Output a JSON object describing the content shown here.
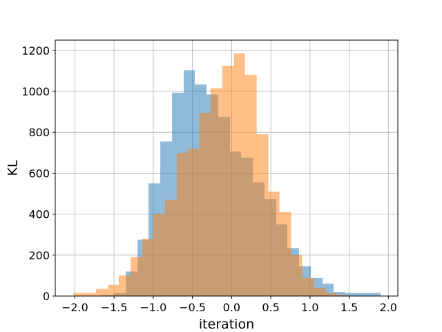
{
  "chart_data": {
    "type": "bar",
    "subtype": "overlaid-histogram",
    "title": "",
    "xlabel": "iteration",
    "ylabel": "KL",
    "xlim": [
      -2.25,
      2.12
    ],
    "ylim": [
      0,
      1250
    ],
    "xticks": [
      -2.0,
      -1.5,
      -1.0,
      -0.5,
      0.0,
      0.5,
      1.0,
      1.5,
      2.0
    ],
    "xtick_labels": [
      "−2.0",
      "−1.5",
      "−1.0",
      "−0.5",
      "0.0",
      "0.5",
      "1.0",
      "1.5",
      "2.0"
    ],
    "yticks": [
      0,
      200,
      400,
      600,
      800,
      1000,
      1200
    ],
    "ytick_labels": [
      "0",
      "200",
      "400",
      "600",
      "800",
      "1000",
      "1200"
    ],
    "grid": true,
    "legend": false,
    "overlap_color": "#c49a6c",
    "series": [
      {
        "color": "#1f77b4",
        "opacity": 0.5,
        "bins": [
          [
            -1.65,
            -1.5,
            5
          ],
          [
            -1.5,
            -1.35,
            15
          ],
          [
            -1.35,
            -1.2,
            120
          ],
          [
            -1.2,
            -1.06,
            275
          ],
          [
            -1.06,
            -0.91,
            550
          ],
          [
            -0.91,
            -0.76,
            755
          ],
          [
            -0.76,
            -0.61,
            993
          ],
          [
            -0.61,
            -0.47,
            1103
          ],
          [
            -0.47,
            -0.32,
            1033
          ],
          [
            -0.32,
            -0.17,
            985
          ],
          [
            -0.17,
            -0.02,
            875
          ],
          [
            -0.02,
            0.12,
            706
          ],
          [
            0.12,
            0.27,
            676
          ],
          [
            0.27,
            0.42,
            556
          ],
          [
            0.42,
            0.57,
            473
          ],
          [
            0.57,
            0.71,
            350
          ],
          [
            0.71,
            0.86,
            233
          ],
          [
            0.86,
            1.01,
            145
          ],
          [
            1.01,
            1.16,
            88
          ],
          [
            1.16,
            1.3,
            60
          ],
          [
            1.3,
            1.45,
            20
          ],
          [
            1.45,
            1.6,
            15
          ],
          [
            1.6,
            1.75,
            15
          ],
          [
            1.75,
            1.9,
            15
          ]
        ]
      },
      {
        "color": "#ff7f0e",
        "opacity": 0.5,
        "bins": [
          [
            -2.02,
            -1.87,
            15
          ],
          [
            -1.87,
            -1.73,
            15
          ],
          [
            -1.73,
            -1.58,
            35
          ],
          [
            -1.58,
            -1.44,
            55
          ],
          [
            -1.44,
            -1.29,
            100
          ],
          [
            -1.29,
            -1.14,
            190
          ],
          [
            -1.14,
            -1.0,
            280
          ],
          [
            -1.0,
            -0.85,
            400
          ],
          [
            -0.85,
            -0.7,
            470
          ],
          [
            -0.7,
            -0.56,
            700
          ],
          [
            -0.56,
            -0.41,
            720
          ],
          [
            -0.41,
            -0.27,
            895
          ],
          [
            -0.27,
            -0.12,
            1015
          ],
          [
            -0.12,
            0.03,
            1125
          ],
          [
            0.03,
            0.17,
            1185
          ],
          [
            0.17,
            0.32,
            1080
          ],
          [
            0.32,
            0.47,
            790
          ],
          [
            0.47,
            0.61,
            510
          ],
          [
            0.61,
            0.76,
            410
          ],
          [
            0.76,
            0.9,
            200
          ],
          [
            0.9,
            1.05,
            88
          ],
          [
            1.05,
            1.2,
            40
          ],
          [
            1.2,
            1.34,
            15
          ],
          [
            1.34,
            1.49,
            5
          ]
        ]
      }
    ]
  }
}
